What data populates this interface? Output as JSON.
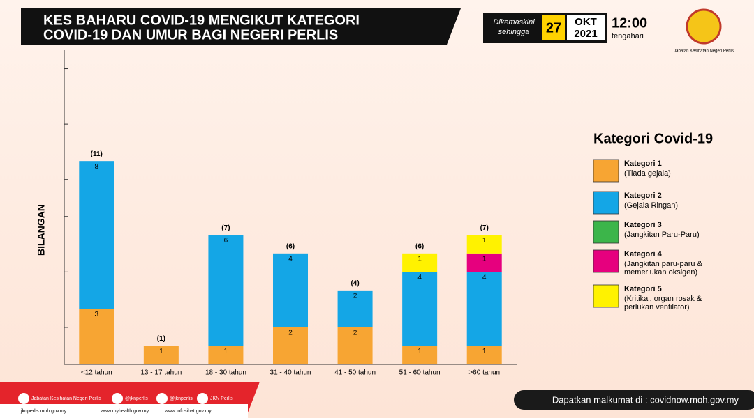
{
  "header": {
    "title_lines": [
      "KES BAHARU COVID-19 MENGIKUT KATEGORI",
      "COVID-19 DAN UMUR BAGI NEGERI PERLIS"
    ],
    "updated_label": [
      "Dikemaskini",
      "sehingga"
    ],
    "day": "27",
    "month": "OKT",
    "year": "2021",
    "time": "12:00",
    "time_note": "tengahari",
    "agency": "Jabatan Kesihatan Negeri Perlis"
  },
  "chart_data": {
    "type": "stacked_bar",
    "ylabel": "BILANGAN",
    "categories": [
      "<12 tahun",
      "13 - 17 tahun",
      "18 - 30 tahun",
      "31 - 40 tahun",
      "41 - 50 tahun",
      "51 - 60 tahun",
      ">60 tahun"
    ],
    "series": [
      {
        "name": "Kategori 1",
        "description": "(Tiada gejala)",
        "color": "#f7a533",
        "values": [
          3,
          1,
          1,
          2,
          2,
          1,
          1
        ]
      },
      {
        "name": "Kategori 2",
        "description": "(Gejala Ringan)",
        "color": "#14a6e6",
        "values": [
          8,
          0,
          6,
          4,
          2,
          4,
          4
        ]
      },
      {
        "name": "Kategori 3",
        "description": "(Jangkitan Paru-Paru)",
        "color": "#3cb54a",
        "values": [
          0,
          0,
          0,
          0,
          0,
          0,
          0
        ]
      },
      {
        "name": "Kategori 4",
        "description": "(Jangkitan paru-paru & memerlukan oksigen)",
        "color": "#e6007e",
        "values": [
          0,
          0,
          0,
          0,
          0,
          0,
          1
        ]
      },
      {
        "name": "Kategori 5",
        "description": "(Kritikal, organ rosak & perlukan ventilator)",
        "color": "#fff200",
        "values": [
          0,
          0,
          0,
          0,
          0,
          1,
          1
        ]
      }
    ],
    "totals": {
      "values": [
        11,
        1,
        7,
        6,
        4,
        6,
        7
      ],
      "value_labels": [
        "(11)",
        "(1)",
        "(7)",
        "(6)",
        "(4)",
        "(6)",
        "(7)"
      ]
    },
    "ylim": [
      0,
      17
    ],
    "yticks": [
      0,
      2,
      5,
      8,
      10,
      13,
      16
    ],
    "legend_title": "Kategori Covid-19"
  },
  "footer": {
    "social": [
      "Jabatan Kesihatan Negeri Perlis",
      "@jknperlis",
      "@jknperlis",
      "JKN Perlis"
    ],
    "websites": [
      "jknperlis.moh.gov.my",
      "www.myhealth.gov.my",
      "www.infosihat.gov.my"
    ],
    "info": "Dapatkan malkumat di : covidnow.moh.gov.my"
  }
}
